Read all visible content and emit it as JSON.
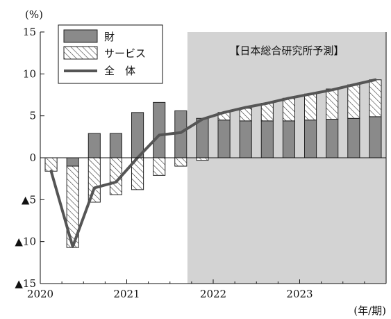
{
  "chart_data": {
    "type": "bar",
    "ylabel": "(%)",
    "xlabel": "(年/期)",
    "ylim": [
      -15,
      15
    ],
    "y_ticks": [
      15,
      10,
      5,
      0,
      -5,
      -10,
      -15
    ],
    "y_tick_labels": [
      "15",
      "10",
      "5",
      "0",
      "▲5",
      "▲10",
      "▲15"
    ],
    "x_tick_labels": [
      "2020",
      "2021",
      "2022",
      "2023"
    ],
    "forecast_label": "【日本総合研究所予測】",
    "forecast_start_index": 7,
    "grid": false,
    "legend_position": "top-left",
    "legend": [
      "財",
      "サービス",
      "全　体"
    ],
    "series": [
      {
        "name": "財",
        "kind": "bar",
        "values": [
          0,
          -1.0,
          2.9,
          2.9,
          5.4,
          6.6,
          5.6,
          4.7,
          4.5,
          4.4,
          4.4,
          4.4,
          4.5,
          4.6,
          4.7,
          4.9
        ]
      },
      {
        "name": "サービス",
        "kind": "bar",
        "values": [
          -1.6,
          -9.7,
          -5.3,
          -4.4,
          -3.8,
          -2.1,
          -1.0,
          -0.3,
          0.9,
          1.5,
          2.1,
          2.7,
          3.1,
          3.6,
          4.0,
          4.4
        ]
      },
      {
        "name": "全　体",
        "kind": "line",
        "values": [
          -1.6,
          -10.6,
          -3.6,
          -2.9,
          0.0,
          2.7,
          3.0,
          4.6,
          5.4,
          6.0,
          6.5,
          7.1,
          7.6,
          8.1,
          8.7,
          9.3
        ]
      }
    ],
    "colors": {
      "goods": "#8a8a8a",
      "services_hatch": "#333333",
      "total_line": "#555555",
      "forecast_bg": "#d3d3d3"
    }
  }
}
